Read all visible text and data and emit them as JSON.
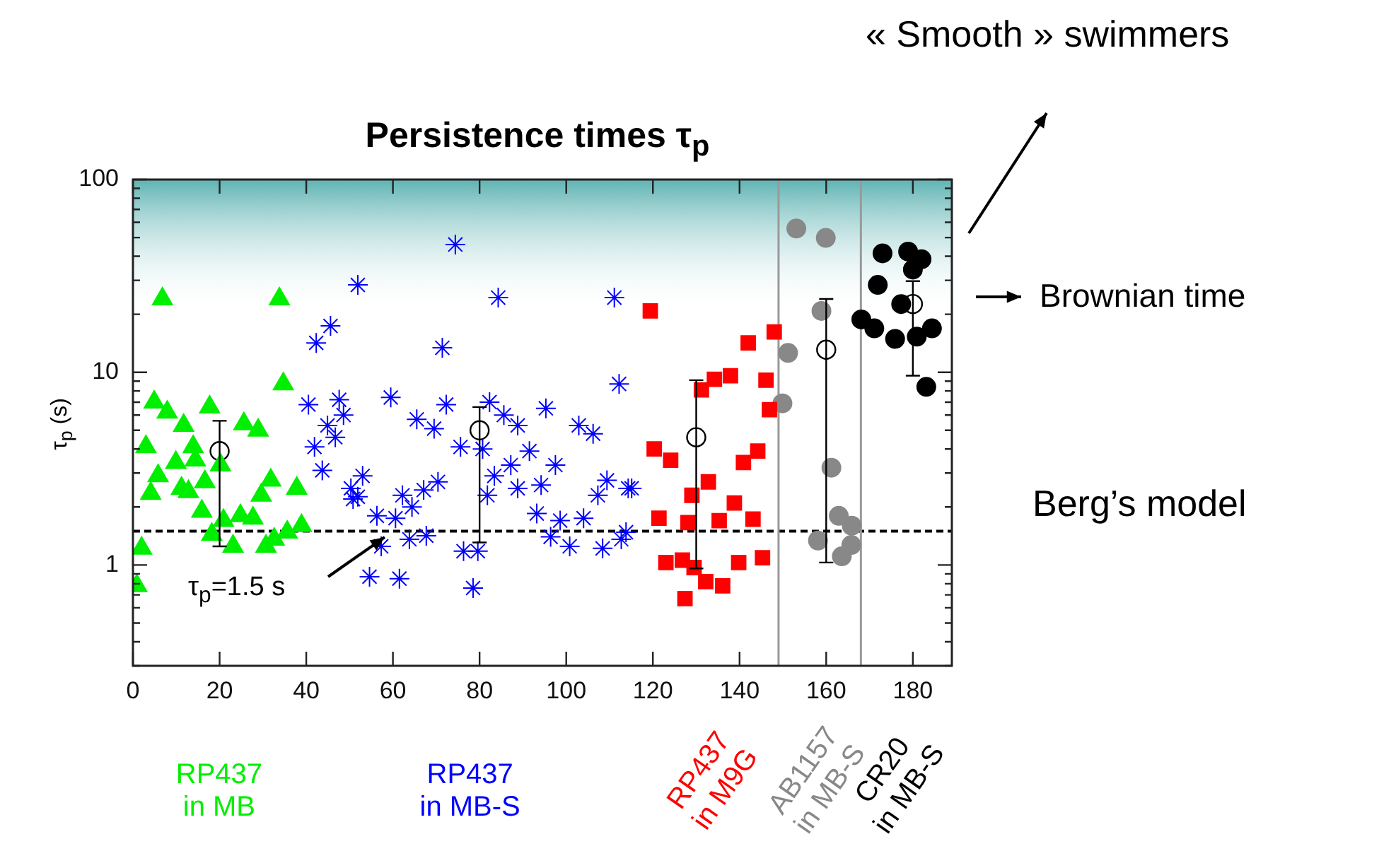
{
  "chart_data": {
    "type": "scatter",
    "title": "Persistence times τ$_{p}$",
    "ylabel": "τ$_{p}$ (s)",
    "annotations": [
      "« Smooth » swimmers",
      "Brownian time",
      "Berg’s model",
      "τ$_{p}$=1.5 s"
    ],
    "xlim": [
      0,
      189
    ],
    "xticks": [
      0,
      20,
      40,
      60,
      80,
      100,
      120,
      140,
      160,
      180
    ],
    "ylim": [
      0.3,
      100
    ],
    "log": "y",
    "yticks": [
      {
        "value": 0.3,
        "label": null
      },
      {
        "value": 0.4,
        "label": null
      },
      {
        "value": 0.5,
        "label": null
      },
      {
        "value": 0.6,
        "label": null
      },
      {
        "value": 0.7,
        "label": null
      },
      {
        "value": 0.8,
        "label": null
      },
      {
        "value": 0.9,
        "label": null
      },
      1,
      {
        "value": 2,
        "label": null
      },
      {
        "value": 3,
        "label": null
      },
      {
        "value": 4,
        "label": null
      },
      {
        "value": 5,
        "label": null
      },
      {
        "value": 6,
        "label": null
      },
      {
        "value": 7,
        "label": null
      },
      {
        "value": 8,
        "label": null
      },
      {
        "value": 9,
        "label": null
      },
      10,
      {
        "value": 20,
        "label": null
      },
      {
        "value": 30,
        "label": null
      },
      {
        "value": 40,
        "label": null
      },
      {
        "value": 50,
        "label": null
      },
      {
        "value": 60,
        "label": null
      },
      {
        "value": 70,
        "label": null
      },
      {
        "value": 80,
        "label": null
      },
      {
        "value": 90,
        "label": null
      },
      100
    ],
    "ref_lines": [
      {
        "axis": "y",
        "value": 1.5,
        "color": "#000000",
        "line_style": "dashed"
      },
      {
        "axis": "x",
        "value": 149,
        "color": "#999999"
      },
      {
        "axis": "x",
        "value": 168,
        "color": "#999999"
      }
    ],
    "bands": [
      {
        "axis": "y",
        "from": 20,
        "to": 100,
        "color": "#5fb3b3"
      }
    ],
    "series": [
      {
        "name": "RP437\nin MB",
        "color": "#00ee00",
        "marker": "triangle",
        "x": [
          6.8,
          33.8,
          34.7,
          4.9,
          7.9,
          17.7,
          11.7,
          25.6,
          28.9,
          3.0,
          13.9,
          9.9,
          5.8,
          14.4,
          20.2,
          31.8,
          37.8,
          4.1,
          11.2,
          12.8,
          16.6,
          29.6,
          15.9,
          24.8,
          27.7,
          20.9,
          18.2,
          38.9,
          35.6,
          32.6,
          30.7,
          23.1,
          2.0,
          0.9
        ],
        "values": [
          24,
          24,
          8.7,
          7.0,
          6.2,
          6.6,
          5.3,
          5.4,
          5.0,
          4.1,
          4.1,
          3.4,
          2.9,
          3.5,
          3.3,
          2.75,
          2.5,
          2.35,
          2.5,
          2.4,
          2.7,
          2.3,
          1.9,
          1.8,
          1.75,
          1.7,
          1.44,
          1.6,
          1.48,
          1.36,
          1.25,
          1.25,
          1.22,
          0.78
        ]
      },
      {
        "name": "RP437\nin MB-S",
        "color": "#0000ff",
        "marker": "cross",
        "x": [
          51.9,
          45.6,
          42.3,
          40.5,
          47.6,
          48.6,
          44.9,
          46.7,
          41.9,
          43.7,
          50.3,
          50.8,
          74.4,
          84.3,
          111.1,
          71.4,
          112.2,
          59.5,
          72.3,
          65.5,
          69.5,
          82.3,
          85.6,
          88.8,
          95.3,
          102.9,
          106.2,
          91.5,
          75.6,
          80.7,
          97.5,
          87.2,
          53.0,
          51.9,
          62.2,
          67.1,
          70.4,
          64.4,
          81.8,
          83.4,
          88.8,
          94.2,
          109.4,
          107.3,
          114.3,
          56.3,
          60.6,
          93.2,
          98.6,
          104.0,
          57.3,
          63.8,
          67.7,
          96.4,
          100.8,
          108.4,
          112.7,
          76.3,
          79.6,
          54.6,
          61.5,
          78.5,
          115.1,
          113.8
        ],
        "values": [
          28.4,
          17.4,
          14.2,
          6.8,
          7.2,
          6.0,
          5.3,
          4.6,
          4.1,
          3.1,
          2.5,
          2.2,
          46,
          24.4,
          24.4,
          13.4,
          8.7,
          7.4,
          6.8,
          5.7,
          5.1,
          7.0,
          6.0,
          5.3,
          6.5,
          5.3,
          4.8,
          3.9,
          4.1,
          4.0,
          3.3,
          3.3,
          2.9,
          2.26,
          2.3,
          2.45,
          2.7,
          2.0,
          2.3,
          2.9,
          2.5,
          2.6,
          2.75,
          2.3,
          2.5,
          1.8,
          1.75,
          1.85,
          1.7,
          1.75,
          1.25,
          1.36,
          1.42,
          1.4,
          1.25,
          1.22,
          1.36,
          1.18,
          1.18,
          0.87,
          0.85,
          0.76,
          2.5,
          1.48
        ]
      },
      {
        "name": "RP437\nin M9G",
        "color": "#ff0000",
        "marker": "square",
        "x": [
          119.4,
          148.0,
          142.0,
          137.9,
          134.2,
          131.2,
          146.1,
          146.9,
          120.3,
          124.1,
          144.2,
          140.9,
          132.8,
          129.0,
          138.8,
          121.4,
          128.1,
          135.3,
          143.1,
          123.0,
          126.8,
          129.5,
          139.8,
          145.3,
          132.2,
          136.1,
          127.4
        ],
        "values": [
          20.8,
          16.2,
          14.2,
          9.6,
          9.2,
          8.1,
          9.1,
          6.4,
          4.0,
          3.5,
          3.9,
          3.4,
          2.7,
          2.3,
          2.1,
          1.75,
          1.66,
          1.7,
          1.73,
          1.03,
          1.06,
          0.97,
          1.03,
          1.09,
          0.82,
          0.78,
          0.67
        ]
      },
      {
        "name": "AB1157\nin MB-S",
        "color": "#888888",
        "marker": "circle",
        "x": [
          153.1,
          159.9,
          158.9,
          151.2,
          149.9,
          161.2,
          162.9,
          165.9,
          158.1,
          165.8,
          163.6
        ],
        "values": [
          55.7,
          49.8,
          20.8,
          12.6,
          6.9,
          3.2,
          1.8,
          1.6,
          1.34,
          1.27,
          1.11
        ]
      },
      {
        "name": "CR20\nin MB-S",
        "color": "#000000",
        "marker": "circle",
        "x": [
          173.0,
          178.9,
          182.0,
          180.0,
          171.9,
          177.3,
          168.1,
          171.1,
          175.9,
          180.9,
          184.4,
          183.1
        ],
        "values": [
          41.4,
          42.3,
          38.6,
          34.1,
          28.4,
          22.6,
          18.8,
          16.9,
          14.9,
          15.3,
          16.9,
          8.4
        ]
      },
      {
        "color": "#000000",
        "marker": "circle",
        "x": [
          20,
          80,
          130,
          160,
          180
        ],
        "values": [
          3.9,
          5.0,
          4.6,
          13.1,
          22.6
        ],
        "errors": [
          [
            1.25,
            5.6
          ],
          [
            1.31,
            6.6
          ],
          [
            0.96,
            9.1
          ],
          [
            1.03,
            24
          ],
          [
            9.6,
            29.7
          ]
        ]
      }
    ]
  }
}
